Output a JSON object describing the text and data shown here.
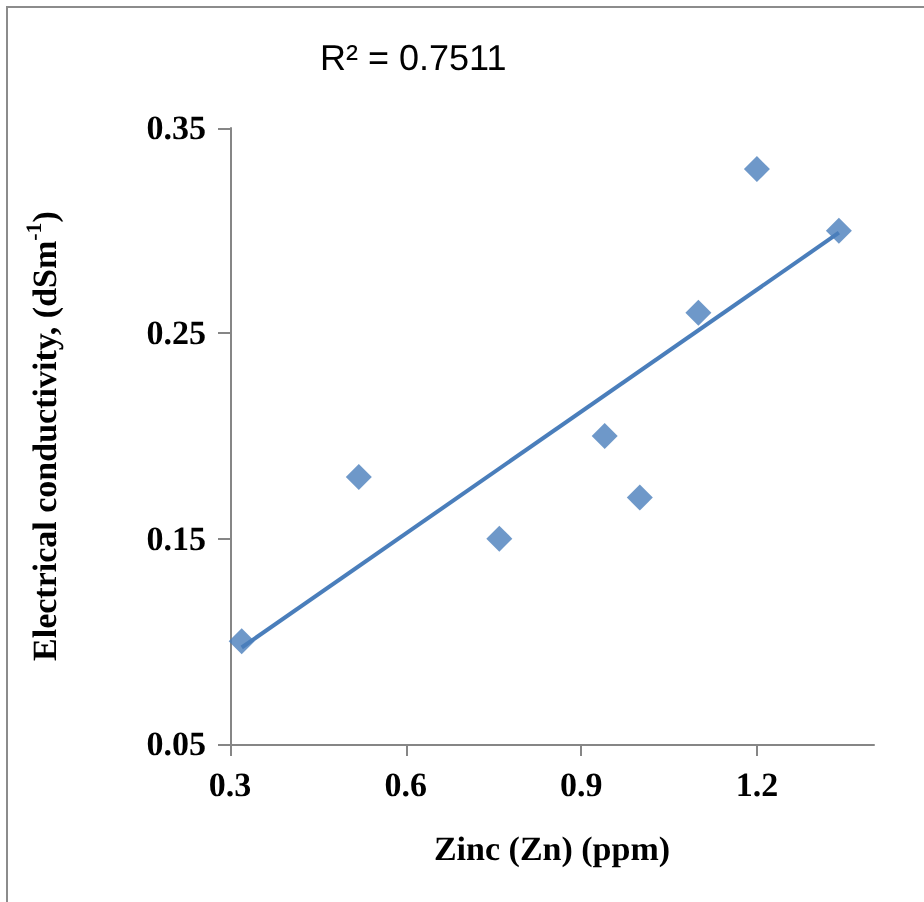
{
  "chart_data": {
    "type": "scatter",
    "xlabel": "Zinc (Zn) (ppm)",
    "ylabel": "Electrical conductivity, (dSm$^{-1}$)",
    "annotations": [
      "R² = 0.7511"
    ],
    "x": [
      0.32,
      0.52,
      0.76,
      0.94,
      1.0,
      1.1,
      1.2,
      1.34
    ],
    "series": [
      {
        "color": "#4a7ebb",
        "values": [
          0.1,
          0.18,
          0.15,
          0.2,
          0.17,
          0.26,
          0.33,
          0.3
        ],
        "marker": "diamond"
      },
      {
        "type": "line",
        "color": "#4a7ebb",
        "x": [
          0.32,
          1.34
        ],
        "values": [
          0.097,
          0.299
        ],
        "marker": "none",
        "line_style": "solid"
      }
    ],
    "xlim": [
      0.3,
      1.4
    ],
    "xticks": [
      0.3,
      0.6,
      0.9,
      1.2
    ],
    "ylim": [
      0.05,
      0.35
    ],
    "yticks": [
      0.05,
      0.15,
      0.25,
      0.35
    ]
  }
}
